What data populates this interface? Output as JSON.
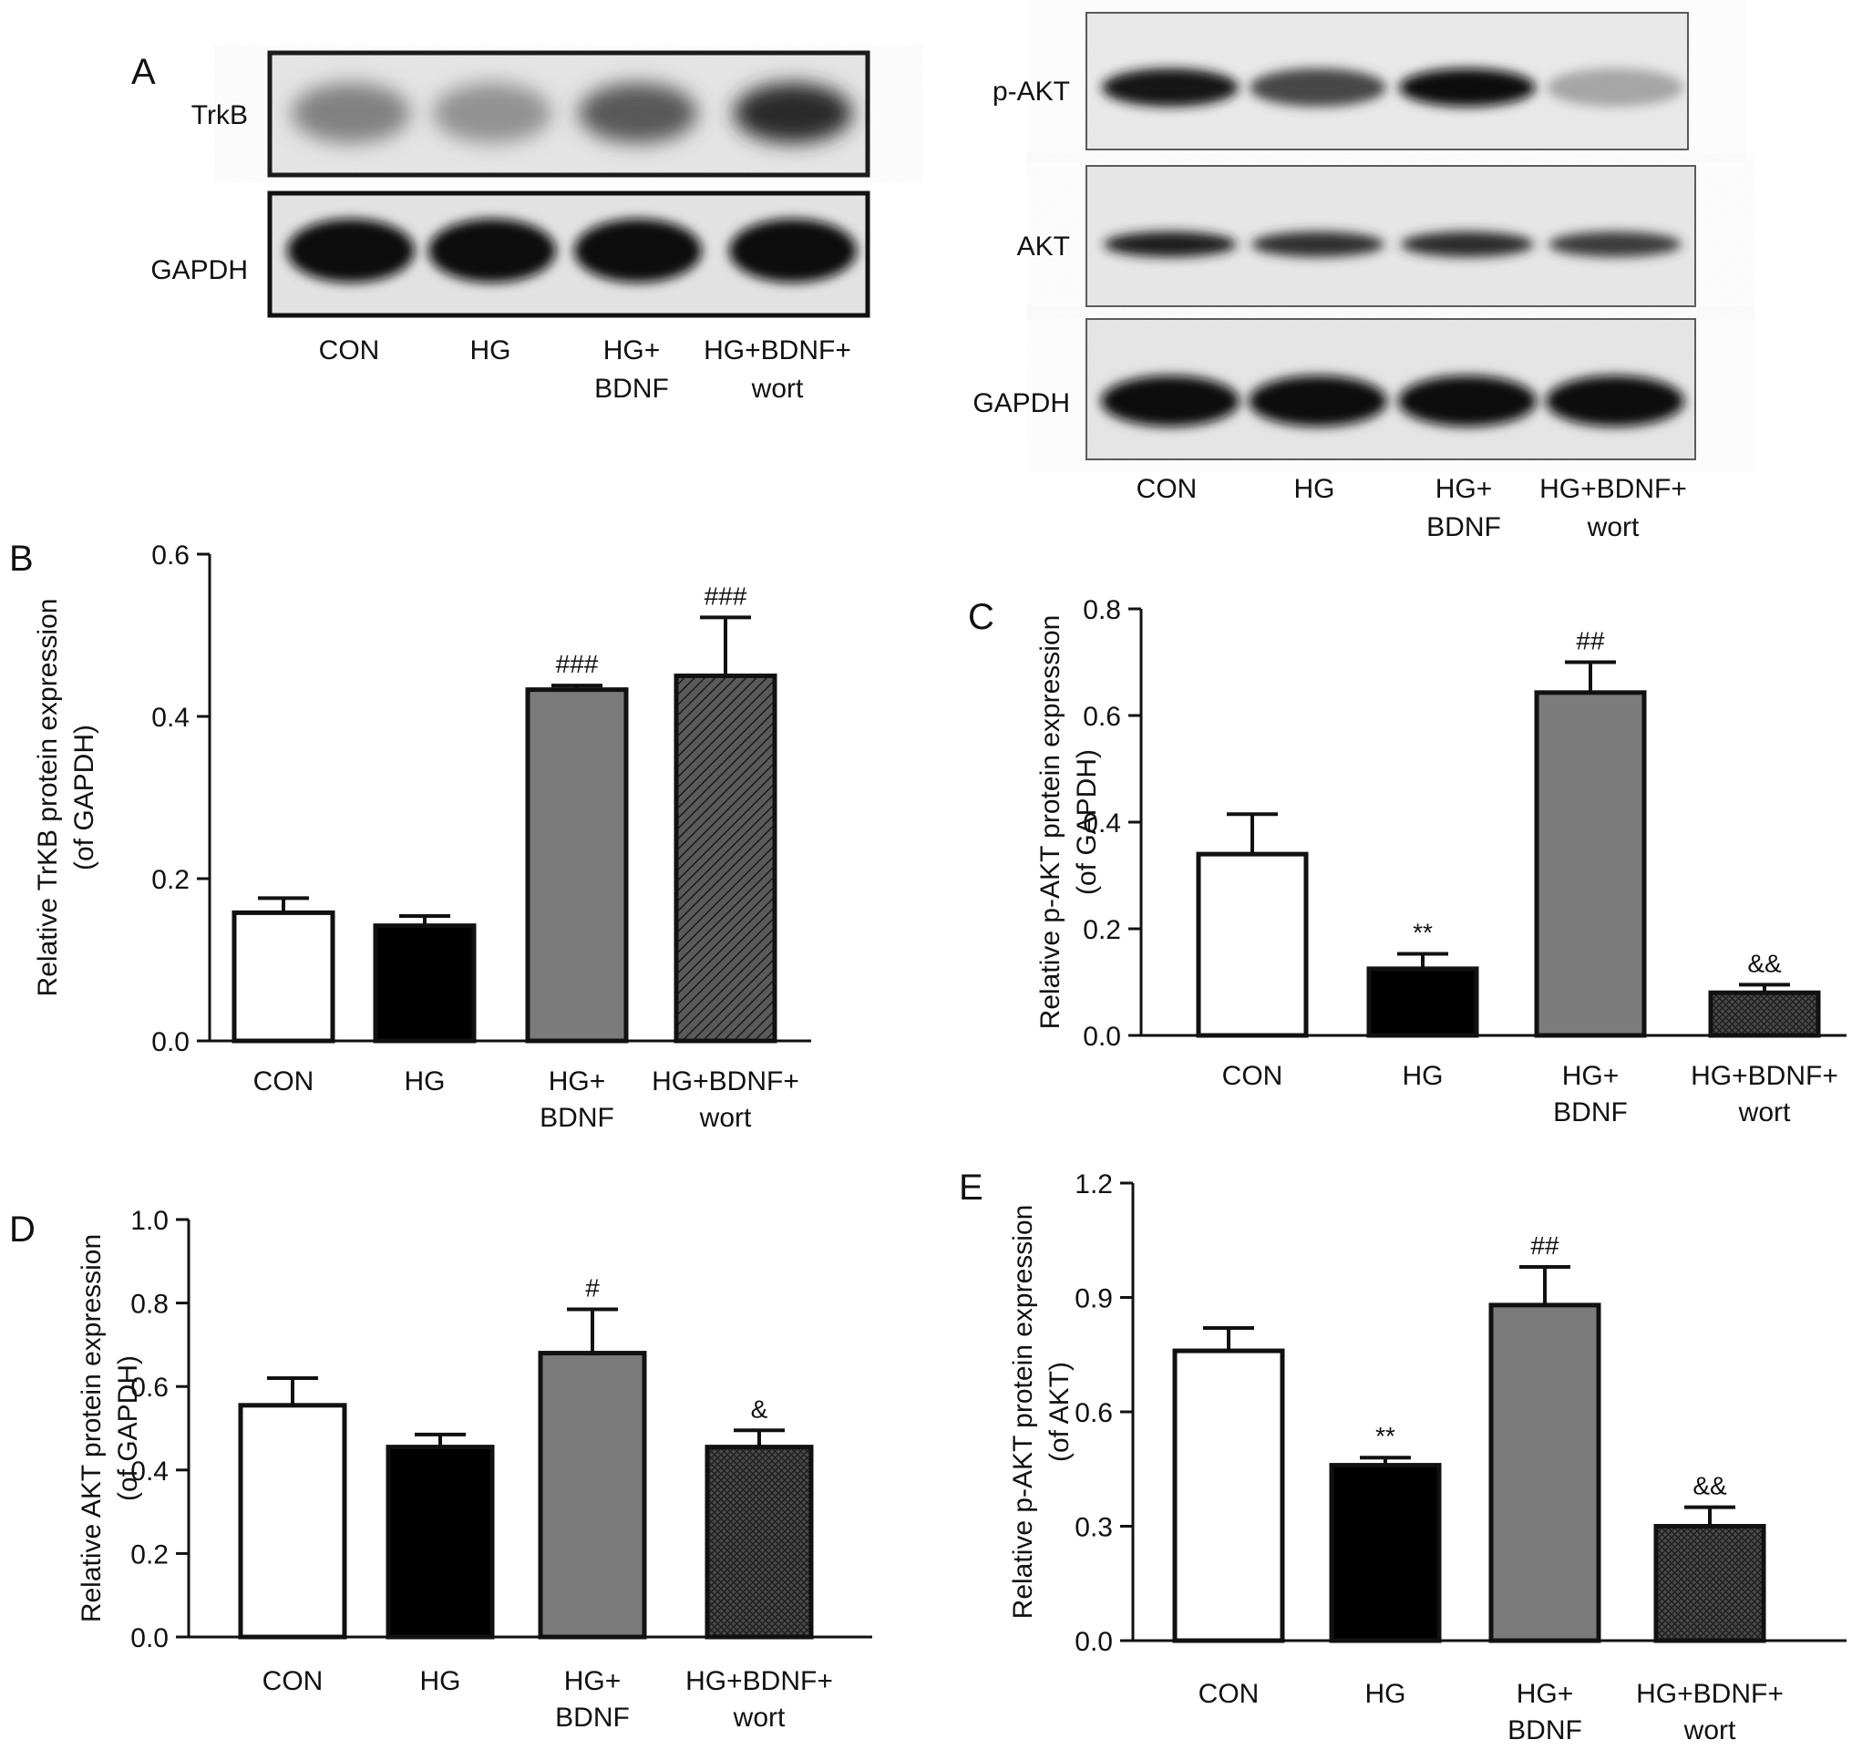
{
  "figure": {
    "panel_labels": [
      "A",
      "B",
      "C",
      "D",
      "E"
    ],
    "groups": [
      "CON",
      "HG",
      "HG+BDNF",
      "HG+BDNF+wort"
    ],
    "group_label_lines": [
      [
        "CON"
      ],
      [
        "HG"
      ],
      [
        "HG+",
        "BDNF"
      ],
      [
        "HG+BDNF+",
        "wort"
      ]
    ],
    "colors": {
      "CON": "#ffffff",
      "HG": "#000000",
      "HG+BDNF": "#7a7a7a",
      "HG+BDNF+wort": "#444444"
    },
    "bar_fill_patterns": [
      "white",
      "solid black",
      "solid gray",
      "dark hatched"
    ]
  },
  "blots": [
    {
      "panel": "A",
      "lanes": [
        "CON",
        "HG",
        "HG+BDNF",
        "HG+BDNF+wort"
      ],
      "rows": [
        {
          "label": "TrkB",
          "intensity": [
            0.45,
            0.38,
            0.62,
            0.82
          ]
        },
        {
          "label": "GAPDH",
          "intensity": [
            0.95,
            0.95,
            0.93,
            0.93
          ]
        }
      ]
    },
    {
      "panel": "A",
      "lanes": [
        "CON",
        "HG",
        "HG+BDNF",
        "HG+BDNF+wort"
      ],
      "rows": [
        {
          "label": "p-AKT",
          "intensity": [
            0.9,
            0.7,
            0.97,
            0.3
          ]
        },
        {
          "label": "AKT",
          "intensity": [
            0.88,
            0.8,
            0.82,
            0.75
          ]
        },
        {
          "label": "GAPDH",
          "intensity": [
            0.97,
            0.95,
            0.95,
            0.95
          ]
        }
      ]
    }
  ],
  "chart_data": [
    {
      "panel": "B",
      "type": "bar",
      "categories": [
        "CON",
        "HG",
        "HG+BDNF",
        "HG+BDNF+wort"
      ],
      "values": [
        0.158,
        0.142,
        0.433,
        0.45
      ],
      "errors": [
        0.018,
        0.012,
        0.005,
        0.072
      ],
      "annotations": [
        "",
        "",
        "###",
        "###"
      ],
      "ylabel_lines": [
        "Relative TrKB protein expression",
        "(of GAPDH)"
      ],
      "ylim": [
        0,
        0.6
      ],
      "yticks": [
        0.0,
        0.2,
        0.4,
        0.6
      ],
      "ytick_labels": [
        "0.0",
        "0.2",
        "0.4",
        "0.6"
      ]
    },
    {
      "panel": "C",
      "type": "bar",
      "categories": [
        "CON",
        "HG",
        "HG+BDNF",
        "HG+BDNF+wort"
      ],
      "values": [
        0.34,
        0.125,
        0.643,
        0.08
      ],
      "errors": [
        0.075,
        0.028,
        0.057,
        0.015
      ],
      "annotations": [
        "",
        "**",
        "##",
        "&&"
      ],
      "ylabel_lines": [
        "Relative p-AKT protein expression",
        "(of GAPDH)"
      ],
      "ylim": [
        0,
        0.8
      ],
      "yticks": [
        0.0,
        0.2,
        0.4,
        0.6,
        0.8
      ],
      "ytick_labels": [
        "0.0",
        "0.2",
        "0.4",
        "0.6",
        "0.8"
      ]
    },
    {
      "panel": "D",
      "type": "bar",
      "categories": [
        "CON",
        "HG",
        "HG+BDNF",
        "HG+BDNF+wort"
      ],
      "values": [
        0.555,
        0.455,
        0.68,
        0.455
      ],
      "errors": [
        0.065,
        0.03,
        0.105,
        0.04
      ],
      "annotations": [
        "",
        "",
        "#",
        "&"
      ],
      "ylabel_lines": [
        "Relative AKT protein expression",
        "(of GAPDH)"
      ],
      "ylim": [
        0,
        1.0
      ],
      "yticks": [
        0.0,
        0.2,
        0.4,
        0.6,
        0.8,
        1.0
      ],
      "ytick_labels": [
        "0.0",
        "0.2",
        "0.4",
        "0.6",
        "0.8",
        "1.0"
      ]
    },
    {
      "panel": "E",
      "type": "bar",
      "categories": [
        "CON",
        "HG",
        "HG+BDNF",
        "HG+BDNF+wort"
      ],
      "values": [
        0.76,
        0.46,
        0.88,
        0.3
      ],
      "errors": [
        0.06,
        0.02,
        0.1,
        0.05
      ],
      "annotations": [
        "",
        "**",
        "##",
        "&&"
      ],
      "ylabel_lines": [
        "Relative p-AKT protein expression",
        "(of AKT)"
      ],
      "ylim": [
        0,
        1.2
      ],
      "yticks": [
        0.0,
        0.3,
        0.6,
        0.9,
        1.2
      ],
      "ytick_labels": [
        "0.0",
        "0.3",
        "0.6",
        "0.9",
        "1.2"
      ]
    }
  ]
}
